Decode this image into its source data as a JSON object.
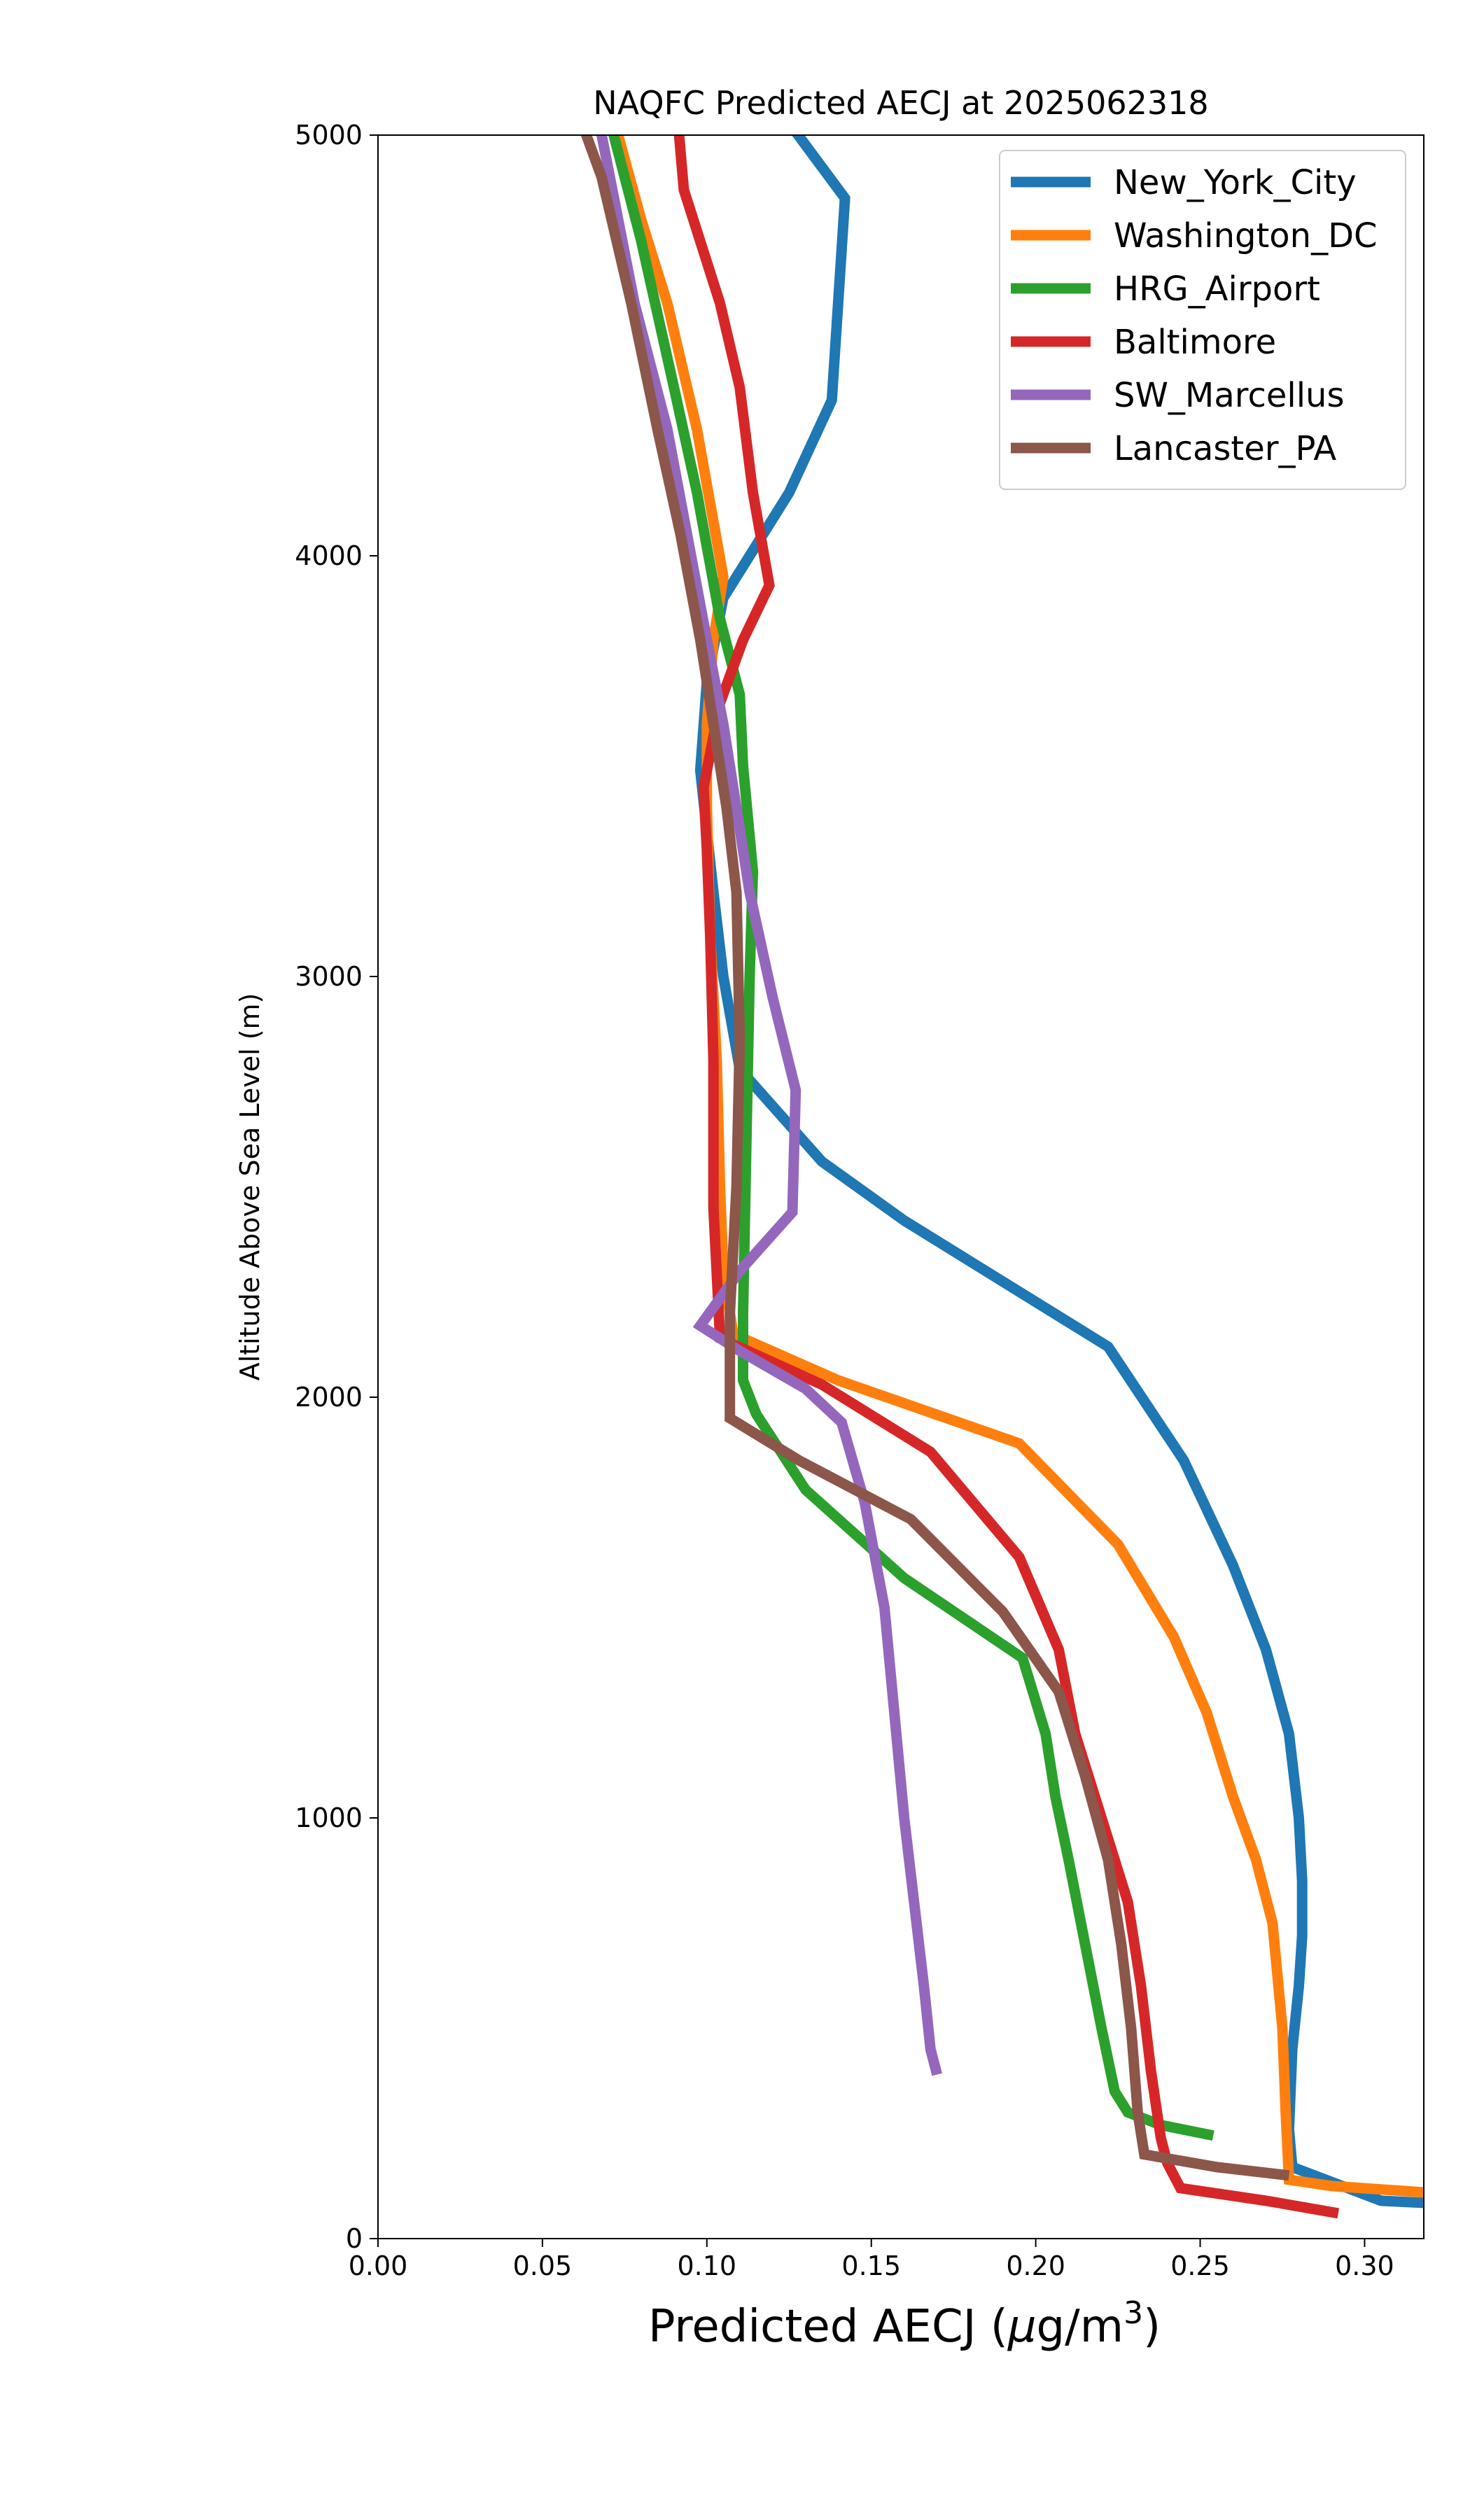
{
  "chart_data": {
    "type": "line",
    "title": "NAQFC Predicted AECJ at 2025062318",
    "xlabel_main": "Predicted AECJ (",
    "xlabel_mu": "μ",
    "xlabel_unit": "g/m",
    "xlabel_sup": "3",
    "xlabel_close": ")",
    "ylabel": "Altitude Above Sea Level (m)",
    "xlim": [
      0.0,
      0.318
    ],
    "ylim": [
      0,
      5000
    ],
    "xticks": [
      {
        "value": 0.0,
        "label": "0.00"
      },
      {
        "value": 0.05,
        "label": "0.05"
      },
      {
        "value": 0.1,
        "label": "0.10"
      },
      {
        "value": 0.15,
        "label": "0.15"
      },
      {
        "value": 0.2,
        "label": "0.20"
      },
      {
        "value": 0.25,
        "label": "0.25"
      },
      {
        "value": 0.3,
        "label": "0.30"
      }
    ],
    "yticks": [
      {
        "value": 0,
        "label": "0"
      },
      {
        "value": 1000,
        "label": "1000"
      },
      {
        "value": 2000,
        "label": "2000"
      },
      {
        "value": 3000,
        "label": "3000"
      },
      {
        "value": 4000,
        "label": "4000"
      },
      {
        "value": 5000,
        "label": "5000"
      }
    ],
    "grid": false,
    "legend_position": "top-right",
    "series": [
      {
        "name": "New_York_City",
        "color": "#1f77b4",
        "points": [
          [
            0.318,
            85
          ],
          [
            0.305,
            90
          ],
          [
            0.278,
            170
          ],
          [
            0.277,
            260
          ],
          [
            0.278,
            450
          ],
          [
            0.28,
            600
          ],
          [
            0.281,
            720
          ],
          [
            0.281,
            850
          ],
          [
            0.28,
            1000
          ],
          [
            0.277,
            1200
          ],
          [
            0.27,
            1400
          ],
          [
            0.26,
            1600
          ],
          [
            0.245,
            1850
          ],
          [
            0.222,
            2120
          ],
          [
            0.16,
            2420
          ],
          [
            0.135,
            2560
          ],
          [
            0.11,
            2780
          ],
          [
            0.105,
            3000
          ],
          [
            0.102,
            3200
          ],
          [
            0.098,
            3490
          ],
          [
            0.1,
            3700
          ],
          [
            0.105,
            3900
          ],
          [
            0.125,
            4150
          ],
          [
            0.138,
            4370
          ],
          [
            0.142,
            4850
          ],
          [
            0.123,
            5050
          ]
        ]
      },
      {
        "name": "Washington_DC",
        "color": "#ff7f0e",
        "points": [
          [
            0.318,
            110
          ],
          [
            0.29,
            125
          ],
          [
            0.277,
            140
          ],
          [
            0.276,
            300
          ],
          [
            0.275,
            500
          ],
          [
            0.272,
            750
          ],
          [
            0.267,
            900
          ],
          [
            0.26,
            1050
          ],
          [
            0.252,
            1250
          ],
          [
            0.242,
            1430
          ],
          [
            0.225,
            1650
          ],
          [
            0.195,
            1890
          ],
          [
            0.14,
            2040
          ],
          [
            0.108,
            2150
          ],
          [
            0.105,
            2300
          ],
          [
            0.104,
            2500
          ],
          [
            0.103,
            2800
          ],
          [
            0.101,
            3100
          ],
          [
            0.1,
            3400
          ],
          [
            0.1,
            3600
          ],
          [
            0.102,
            3800
          ],
          [
            0.105,
            3950
          ],
          [
            0.097,
            4300
          ],
          [
            0.088,
            4600
          ],
          [
            0.08,
            4800
          ],
          [
            0.073,
            5000
          ],
          [
            0.072,
            5050
          ]
        ]
      },
      {
        "name": "HRG_Airport",
        "color": "#2ca02c",
        "points": [
          [
            0.254,
            245
          ],
          [
            0.238,
            270
          ],
          [
            0.228,
            300
          ],
          [
            0.224,
            350
          ],
          [
            0.22,
            500
          ],
          [
            0.215,
            700
          ],
          [
            0.21,
            900
          ],
          [
            0.206,
            1050
          ],
          [
            0.203,
            1200
          ],
          [
            0.196,
            1380
          ],
          [
            0.16,
            1570
          ],
          [
            0.13,
            1780
          ],
          [
            0.115,
            1960
          ],
          [
            0.111,
            2040
          ],
          [
            0.111,
            2200
          ],
          [
            0.112,
            2600
          ],
          [
            0.113,
            3000
          ],
          [
            0.114,
            3250
          ],
          [
            0.111,
            3500
          ],
          [
            0.11,
            3670
          ],
          [
            0.104,
            3850
          ],
          [
            0.097,
            4150
          ],
          [
            0.09,
            4400
          ],
          [
            0.08,
            4750
          ],
          [
            0.07,
            5050
          ]
        ]
      },
      {
        "name": "Baltimore",
        "color": "#d62728",
        "points": [
          [
            0.292,
            60
          ],
          [
            0.27,
            90
          ],
          [
            0.244,
            120
          ],
          [
            0.24,
            180
          ],
          [
            0.238,
            240
          ],
          [
            0.235,
            400
          ],
          [
            0.232,
            600
          ],
          [
            0.228,
            800
          ],
          [
            0.22,
            1000
          ],
          [
            0.212,
            1200
          ],
          [
            0.207,
            1400
          ],
          [
            0.195,
            1620
          ],
          [
            0.168,
            1870
          ],
          [
            0.135,
            2030
          ],
          [
            0.104,
            2140
          ],
          [
            0.102,
            2450
          ],
          [
            0.102,
            2800
          ],
          [
            0.101,
            3100
          ],
          [
            0.1,
            3300
          ],
          [
            0.099,
            3450
          ],
          [
            0.104,
            3650
          ],
          [
            0.111,
            3800
          ],
          [
            0.119,
            3930
          ],
          [
            0.114,
            4150
          ],
          [
            0.11,
            4400
          ],
          [
            0.104,
            4600
          ],
          [
            0.093,
            4870
          ],
          [
            0.091,
            5050
          ]
        ]
      },
      {
        "name": "SW_Marcellus",
        "color": "#9467bd",
        "points": [
          [
            0.17,
            390
          ],
          [
            0.168,
            450
          ],
          [
            0.166,
            600
          ],
          [
            0.163,
            800
          ],
          [
            0.16,
            1000
          ],
          [
            0.157,
            1250
          ],
          [
            0.154,
            1500
          ],
          [
            0.148,
            1750
          ],
          [
            0.141,
            1940
          ],
          [
            0.13,
            2020
          ],
          [
            0.11,
            2110
          ],
          [
            0.098,
            2170
          ],
          [
            0.11,
            2300
          ],
          [
            0.126,
            2440
          ],
          [
            0.127,
            2730
          ],
          [
            0.12,
            2950
          ],
          [
            0.113,
            3200
          ],
          [
            0.105,
            3600
          ],
          [
            0.1,
            3800
          ],
          [
            0.094,
            4050
          ],
          [
            0.088,
            4300
          ],
          [
            0.078,
            4600
          ],
          [
            0.068,
            5000
          ],
          [
            0.066,
            5050
          ]
        ]
      },
      {
        "name": "Lancaster_PA",
        "color": "#8c564b",
        "points": [
          [
            0.277,
            150
          ],
          [
            0.255,
            170
          ],
          [
            0.233,
            200
          ],
          [
            0.231,
            300
          ],
          [
            0.229,
            500
          ],
          [
            0.226,
            700
          ],
          [
            0.222,
            900
          ],
          [
            0.215,
            1100
          ],
          [
            0.207,
            1300
          ],
          [
            0.19,
            1490
          ],
          [
            0.162,
            1710
          ],
          [
            0.128,
            1850
          ],
          [
            0.107,
            1950
          ],
          [
            0.107,
            2200
          ],
          [
            0.109,
            2500
          ],
          [
            0.11,
            2850
          ],
          [
            0.109,
            3200
          ],
          [
            0.106,
            3400
          ],
          [
            0.102,
            3600
          ],
          [
            0.098,
            3800
          ],
          [
            0.092,
            4050
          ],
          [
            0.085,
            4300
          ],
          [
            0.077,
            4600
          ],
          [
            0.068,
            4900
          ],
          [
            0.061,
            5050
          ]
        ]
      }
    ]
  }
}
